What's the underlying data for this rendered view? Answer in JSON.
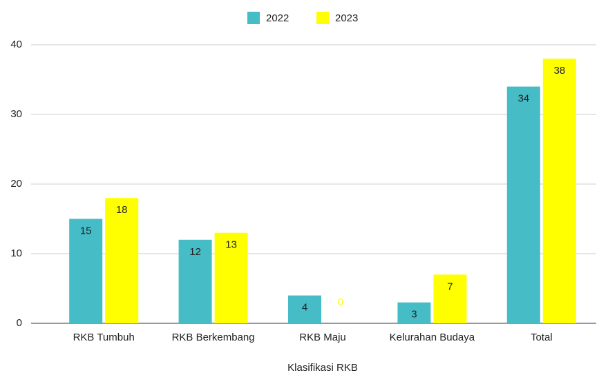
{
  "chart_data": {
    "type": "bar",
    "x_label": "Klasifikasi RKB",
    "categories": [
      "RKB Tumbuh",
      "RKB Berkembang",
      "RKB Maju",
      "Kelurahan Budaya",
      "Total"
    ],
    "series": [
      {
        "name": "2022",
        "color": "#46bdc6",
        "values": [
          15,
          12,
          4,
          3,
          34
        ]
      },
      {
        "name": "2023",
        "color": "#ffff00",
        "values": [
          18,
          13,
          0,
          7,
          38
        ]
      }
    ],
    "ylim": [
      0,
      40
    ],
    "yticks": [
      0,
      10,
      20,
      30,
      40
    ],
    "grid": true,
    "legend": "top"
  }
}
